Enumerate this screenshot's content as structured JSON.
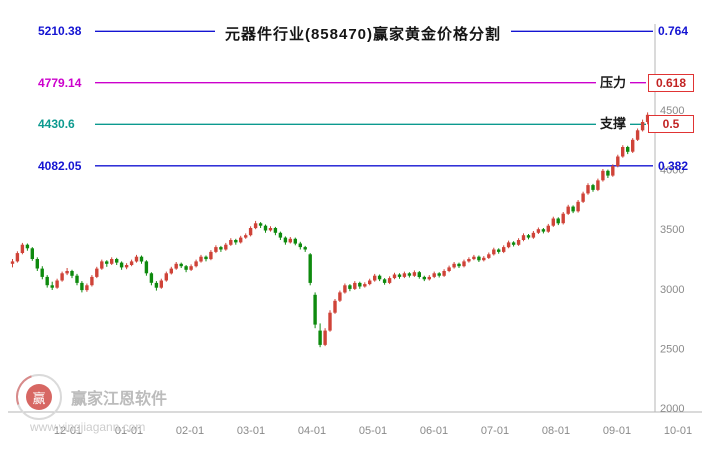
{
  "title": "元器件行业(858470)赢家黄金价格分割",
  "watermark": {
    "brand": "赢家江恩软件",
    "url": "www.yingjiagann.com",
    "logo_text": "赢"
  },
  "colors": {
    "up": "#cf4338",
    "down": "#0e8a0e",
    "axis_text": "#8a8a8a",
    "axis_line": "#b6b6b6",
    "box_border": "#e03434",
    "box_text": "#c22222"
  },
  "chart_data": {
    "type": "candlestick",
    "title": "元器件行业(858470)赢家黄金价格分割",
    "ylim": [
      2000,
      4800
    ],
    "y_ticks": [
      4500,
      4000,
      3500,
      3000,
      2500,
      2000
    ],
    "x_ticks": [
      "12-01",
      "01-01",
      "02-01",
      "03-01",
      "04-01",
      "05-01",
      "06-01",
      "07-01",
      "08-01",
      "09-01",
      "10-01"
    ],
    "fib_levels": [
      {
        "price": 5210.38,
        "price_label": "5210.38",
        "ratio_label": "0.764",
        "color": "#1414d2",
        "boxed": false,
        "tag": ""
      },
      {
        "price": 4779.14,
        "price_label": "4779.14",
        "ratio_label": "0.618",
        "color": "#cc00cc",
        "boxed": true,
        "tag": "压力"
      },
      {
        "price": 4430.6,
        "price_label": "4430.6",
        "ratio_label": "0.5",
        "color": "#0c9a8f",
        "boxed": true,
        "tag": "支撑"
      },
      {
        "price": 4082.05,
        "price_label": "4082.05",
        "ratio_label": "0.382",
        "color": "#1414d2",
        "boxed": false,
        "tag": ""
      }
    ],
    "candles_ohlc": [
      [
        3260,
        3300,
        3230,
        3280
      ],
      [
        3280,
        3365,
        3270,
        3350
      ],
      [
        3350,
        3435,
        3340,
        3420
      ],
      [
        3420,
        3430,
        3370,
        3390
      ],
      [
        3390,
        3400,
        3285,
        3300
      ],
      [
        3300,
        3315,
        3200,
        3220
      ],
      [
        3220,
        3240,
        3130,
        3150
      ],
      [
        3150,
        3165,
        3060,
        3080
      ],
      [
        3080,
        3110,
        3040,
        3060
      ],
      [
        3060,
        3135,
        3050,
        3120
      ],
      [
        3120,
        3195,
        3110,
        3180
      ],
      [
        3180,
        3225,
        3165,
        3200
      ],
      [
        3200,
        3210,
        3140,
        3160
      ],
      [
        3160,
        3175,
        3080,
        3100
      ],
      [
        3100,
        3115,
        3020,
        3040
      ],
      [
        3040,
        3095,
        3025,
        3080
      ],
      [
        3080,
        3165,
        3070,
        3150
      ],
      [
        3150,
        3235,
        3140,
        3220
      ],
      [
        3220,
        3295,
        3210,
        3280
      ],
      [
        3280,
        3290,
        3235,
        3260
      ],
      [
        3260,
        3315,
        3250,
        3300
      ],
      [
        3300,
        3310,
        3250,
        3270
      ],
      [
        3270,
        3280,
        3210,
        3230
      ],
      [
        3230,
        3265,
        3215,
        3250
      ],
      [
        3250,
        3295,
        3240,
        3280
      ],
      [
        3280,
        3335,
        3270,
        3320
      ],
      [
        3320,
        3330,
        3260,
        3280
      ],
      [
        3280,
        3290,
        3160,
        3180
      ],
      [
        3180,
        3190,
        3080,
        3100
      ],
      [
        3100,
        3115,
        3035,
        3060
      ],
      [
        3060,
        3135,
        3050,
        3120
      ],
      [
        3120,
        3195,
        3110,
        3180
      ],
      [
        3180,
        3235,
        3170,
        3220
      ],
      [
        3220,
        3275,
        3210,
        3260
      ],
      [
        3260,
        3270,
        3225,
        3240
      ],
      [
        3240,
        3250,
        3190,
        3210
      ],
      [
        3210,
        3255,
        3200,
        3240
      ],
      [
        3240,
        3295,
        3230,
        3280
      ],
      [
        3280,
        3335,
        3270,
        3320
      ],
      [
        3320,
        3330,
        3280,
        3300
      ],
      [
        3300,
        3375,
        3290,
        3360
      ],
      [
        3360,
        3415,
        3350,
        3400
      ],
      [
        3400,
        3410,
        3360,
        3380
      ],
      [
        3380,
        3435,
        3370,
        3420
      ],
      [
        3420,
        3475,
        3410,
        3460
      ],
      [
        3460,
        3470,
        3420,
        3440
      ],
      [
        3440,
        3495,
        3430,
        3480
      ],
      [
        3480,
        3515,
        3470,
        3500
      ],
      [
        3500,
        3575,
        3490,
        3560
      ],
      [
        3560,
        3620,
        3550,
        3600
      ],
      [
        3600,
        3610,
        3560,
        3580
      ],
      [
        3580,
        3590,
        3520,
        3540
      ],
      [
        3540,
        3575,
        3530,
        3560
      ],
      [
        3560,
        3570,
        3500,
        3520
      ],
      [
        3520,
        3530,
        3460,
        3480
      ],
      [
        3480,
        3490,
        3420,
        3440
      ],
      [
        3440,
        3485,
        3430,
        3470
      ],
      [
        3470,
        3480,
        3415,
        3430
      ],
      [
        3430,
        3445,
        3380,
        3400
      ],
      [
        3400,
        3410,
        3360,
        3380
      ],
      [
        3340,
        3350,
        3080,
        3100
      ],
      [
        3000,
        3020,
        2720,
        2750
      ],
      [
        2700,
        2760,
        2560,
        2580
      ],
      [
        2580,
        2720,
        2570,
        2700
      ],
      [
        2700,
        2870,
        2690,
        2850
      ],
      [
        2850,
        2965,
        2840,
        2950
      ],
      [
        2950,
        3035,
        2940,
        3020
      ],
      [
        3020,
        3095,
        3010,
        3080
      ],
      [
        3080,
        3090,
        3030,
        3050
      ],
      [
        3050,
        3115,
        3040,
        3100
      ],
      [
        3100,
        3110,
        3050,
        3070
      ],
      [
        3070,
        3105,
        3060,
        3090
      ],
      [
        3090,
        3135,
        3080,
        3120
      ],
      [
        3120,
        3175,
        3110,
        3160
      ],
      [
        3160,
        3170,
        3115,
        3130
      ],
      [
        3130,
        3140,
        3085,
        3100
      ],
      [
        3100,
        3155,
        3090,
        3140
      ],
      [
        3140,
        3185,
        3130,
        3170
      ],
      [
        3170,
        3180,
        3135,
        3150
      ],
      [
        3150,
        3195,
        3140,
        3180
      ],
      [
        3180,
        3190,
        3145,
        3160
      ],
      [
        3160,
        3205,
        3150,
        3190
      ],
      [
        3190,
        3200,
        3135,
        3150
      ],
      [
        3150,
        3160,
        3115,
        3130
      ],
      [
        3130,
        3165,
        3120,
        3150
      ],
      [
        3150,
        3195,
        3140,
        3180
      ],
      [
        3180,
        3190,
        3145,
        3160
      ],
      [
        3160,
        3215,
        3150,
        3200
      ],
      [
        3200,
        3245,
        3190,
        3230
      ],
      [
        3230,
        3275,
        3220,
        3260
      ],
      [
        3260,
        3270,
        3225,
        3240
      ],
      [
        3240,
        3295,
        3230,
        3280
      ],
      [
        3280,
        3315,
        3270,
        3300
      ],
      [
        3300,
        3335,
        3290,
        3320
      ],
      [
        3320,
        3330,
        3275,
        3290
      ],
      [
        3290,
        3325,
        3280,
        3310
      ],
      [
        3310,
        3355,
        3300,
        3340
      ],
      [
        3340,
        3395,
        3330,
        3380
      ],
      [
        3380,
        3390,
        3345,
        3360
      ],
      [
        3360,
        3415,
        3350,
        3400
      ],
      [
        3400,
        3455,
        3390,
        3440
      ],
      [
        3440,
        3450,
        3405,
        3420
      ],
      [
        3420,
        3475,
        3410,
        3460
      ],
      [
        3460,
        3515,
        3450,
        3500
      ],
      [
        3500,
        3510,
        3465,
        3480
      ],
      [
        3480,
        3535,
        3470,
        3520
      ],
      [
        3520,
        3565,
        3510,
        3550
      ],
      [
        3550,
        3560,
        3515,
        3530
      ],
      [
        3530,
        3595,
        3520,
        3580
      ],
      [
        3580,
        3655,
        3570,
        3640
      ],
      [
        3640,
        3650,
        3585,
        3600
      ],
      [
        3600,
        3695,
        3590,
        3680
      ],
      [
        3680,
        3755,
        3670,
        3740
      ],
      [
        3740,
        3750,
        3685,
        3700
      ],
      [
        3700,
        3795,
        3690,
        3780
      ],
      [
        3780,
        3865,
        3770,
        3850
      ],
      [
        3850,
        3935,
        3840,
        3920
      ],
      [
        3920,
        3930,
        3865,
        3880
      ],
      [
        3880,
        3975,
        3870,
        3960
      ],
      [
        3960,
        4055,
        3950,
        4040
      ],
      [
        4040,
        4050,
        3980,
        4000
      ],
      [
        4000,
        4095,
        3990,
        4080
      ],
      [
        4080,
        4175,
        4070,
        4160
      ],
      [
        4160,
        4255,
        4150,
        4240
      ],
      [
        4240,
        4250,
        4180,
        4200
      ],
      [
        4200,
        4315,
        4190,
        4300
      ],
      [
        4300,
        4395,
        4290,
        4380
      ],
      [
        4380,
        4470,
        4370,
        4450
      ],
      [
        4450,
        4530,
        4430,
        4510
      ],
      [
        4460,
        4500,
        4390,
        4430
      ]
    ]
  }
}
